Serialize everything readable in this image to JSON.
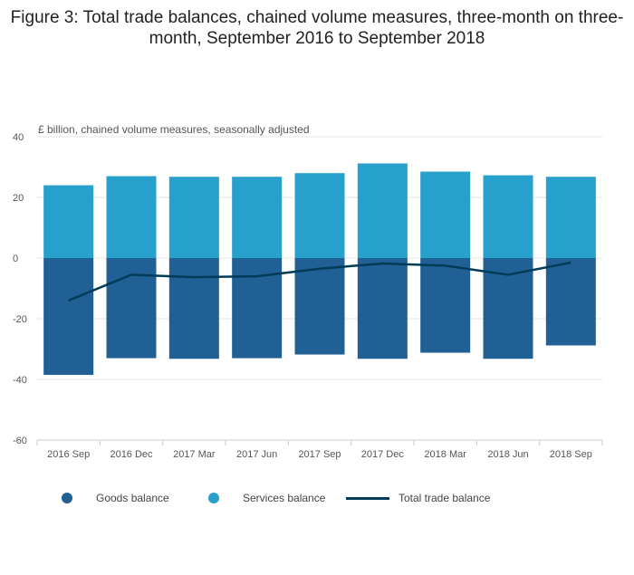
{
  "title": "Figure 3: Total trade balances, chained volume measures, three-month on three-month, September 2016 to September 2018",
  "unit_label": "£ billion, chained volume measures, seasonally adjusted",
  "colors": {
    "goods": "#206095",
    "services": "#27a0cc",
    "total": "#003c57",
    "grid": "#e6e6e6",
    "axis": "#cccccc"
  },
  "chart_data": {
    "type": "bar",
    "stacked": true,
    "title": "Figure 3: Total trade balances, chained volume measures, three-month on three-month, September 2016 to September 2018",
    "ylabel": "£ billion, chained volume measures, seasonally adjusted",
    "xlabel": "",
    "ylim": [
      -60,
      40
    ],
    "yticks": [
      40,
      20,
      0,
      -20,
      -40,
      -60
    ],
    "grid": true,
    "legend_position": "bottom",
    "categories": [
      "2016 Sep",
      "2016 Dec",
      "2017 Mar",
      "2017 Jun",
      "2017 Sep",
      "2017 Dec",
      "2018 Mar",
      "2018 Jun",
      "2018 Sep"
    ],
    "series": [
      {
        "name": "Goods balance",
        "type": "bar",
        "values": [
          -38.5,
          -33,
          -33.2,
          -33,
          -31.8,
          -33.2,
          -31.2,
          -33.2,
          -28.8
        ]
      },
      {
        "name": "Services balance",
        "type": "bar",
        "values": [
          24,
          27,
          26.8,
          26.8,
          28,
          31.2,
          28.5,
          27.3,
          26.8
        ]
      },
      {
        "name": "Total trade balance",
        "type": "line",
        "values": [
          -14,
          -5.5,
          -6.3,
          -6,
          -3.5,
          -1.8,
          -2.5,
          -5.5,
          -1.5
        ]
      }
    ]
  }
}
